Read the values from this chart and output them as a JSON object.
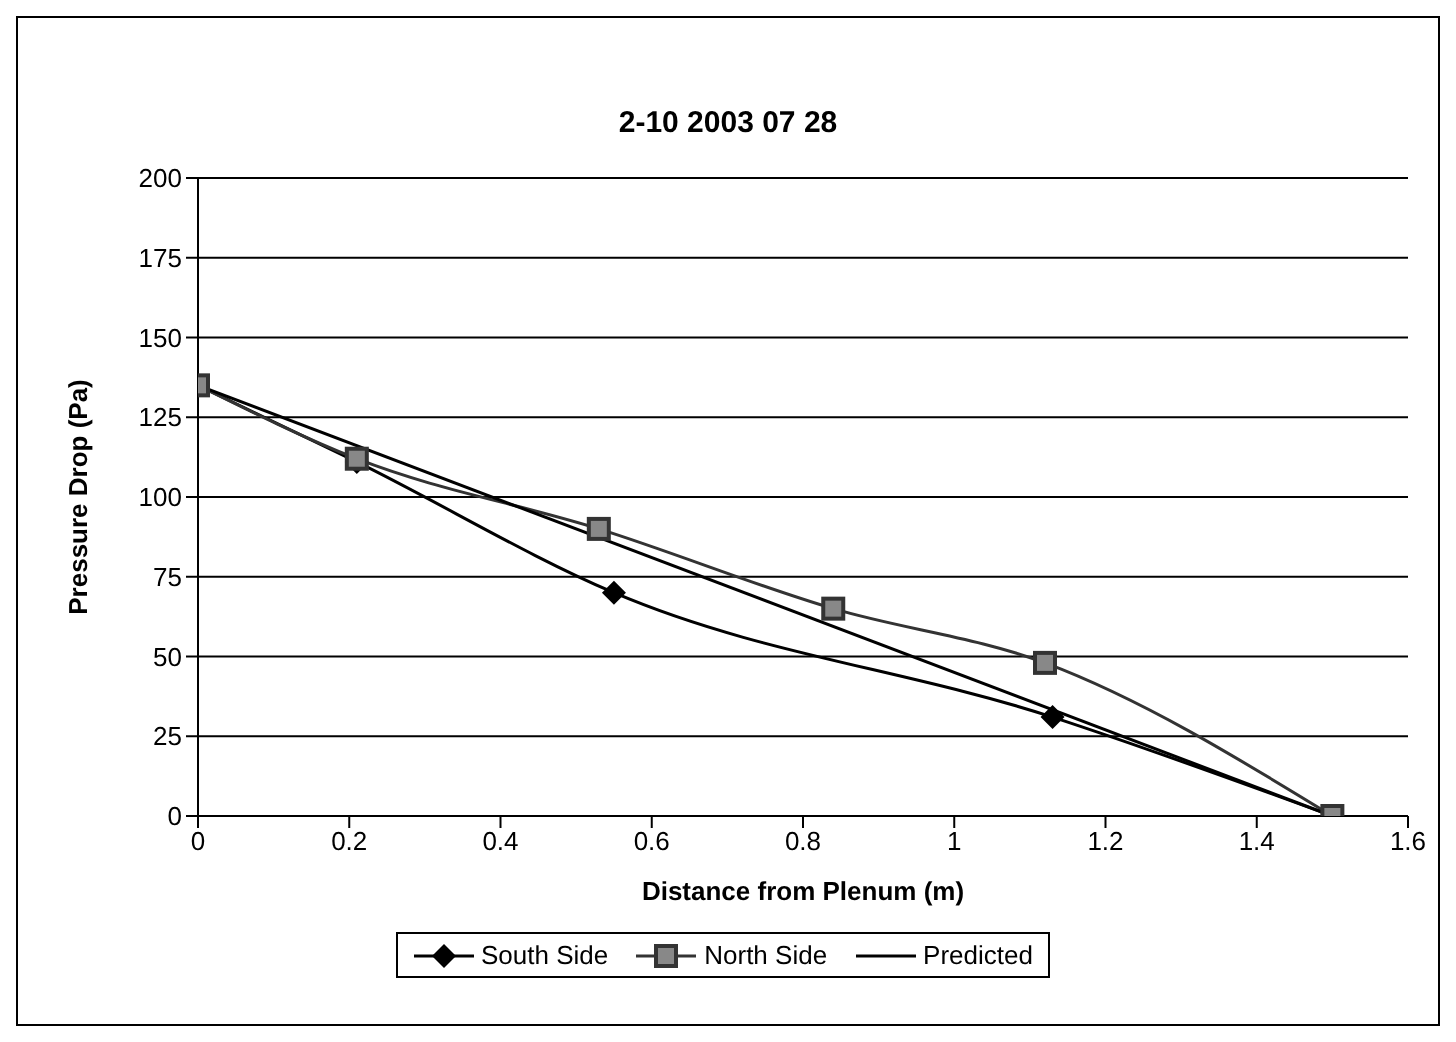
{
  "chart_data": {
    "type": "line",
    "title": "2-10 2003 07 28",
    "xlabel": "Distance from Plenum (m)",
    "ylabel": "Pressure Drop (Pa)",
    "xlim": [
      0,
      1.6
    ],
    "xticks": [
      0,
      0.2,
      0.4,
      0.6,
      0.8,
      1,
      1.2,
      1.4,
      1.6
    ],
    "ylim": [
      0,
      200
    ],
    "yticks": [
      0,
      25,
      50,
      75,
      100,
      125,
      150,
      175,
      200
    ],
    "grid": "y",
    "legend": "bottom",
    "series": [
      {
        "name": "South Side",
        "color": "#000000",
        "marker": "diamond",
        "x": [
          0,
          0.21,
          0.55,
          1.13,
          1.5
        ],
        "values": [
          135,
          111,
          70,
          31,
          0
        ]
      },
      {
        "name": "North Side",
        "color": "#333333",
        "marker": "square",
        "x": [
          0,
          0.21,
          0.53,
          0.84,
          1.12,
          1.5
        ],
        "values": [
          135,
          112,
          90,
          65,
          48,
          0
        ]
      },
      {
        "name": "Predicted",
        "color": "#000000",
        "marker": "none",
        "x": [
          0,
          1.5
        ],
        "values": [
          135,
          0
        ]
      }
    ]
  }
}
